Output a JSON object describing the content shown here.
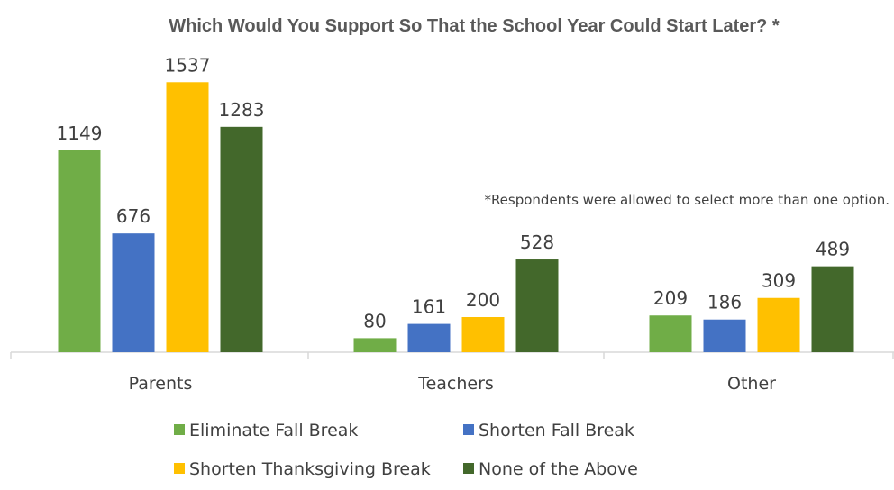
{
  "chart_data": {
    "type": "bar",
    "title": "Which Would You Support So That the School Year Could Start Later? *",
    "note": "*Respondents were allowed to select more than one option.",
    "categories": [
      "Parents",
      "Teachers",
      "Other"
    ],
    "series": [
      {
        "name": "Eliminate Fall Break",
        "color": "#70ad47",
        "values": [
          1149,
          80,
          209
        ]
      },
      {
        "name": "Shorten Fall Break",
        "color": "#4472c4",
        "values": [
          676,
          161,
          186
        ]
      },
      {
        "name": "Shorten Thanksgiving Break",
        "color": "#ffc000",
        "values": [
          1537,
          200,
          309
        ]
      },
      {
        "name": "None of the Above",
        "color": "#43682b",
        "values": [
          1283,
          528,
          489
        ]
      }
    ],
    "ylim": [
      0,
      1600
    ],
    "grid": false,
    "legend": "bottom"
  }
}
